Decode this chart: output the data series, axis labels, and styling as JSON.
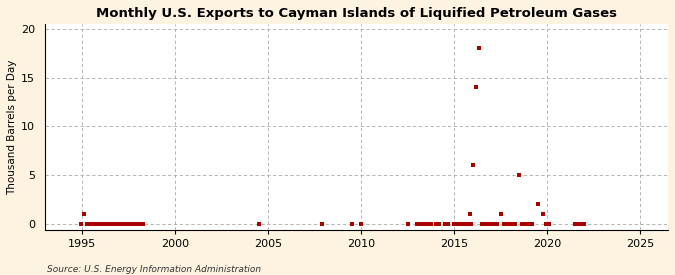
{
  "title": "Monthly U.S. Exports to Cayman Islands of Liquified Petroleum Gases",
  "ylabel": "Thousand Barrels per Day",
  "source": "Source: U.S. Energy Information Administration",
  "outer_bg": "#fdf3e0",
  "plot_bg": "#ffffff",
  "marker_color": "#aa0000",
  "xlim": [
    1993.0,
    2026.5
  ],
  "ylim": [
    -0.6,
    20.5
  ],
  "yticks": [
    0,
    5,
    10,
    15,
    20
  ],
  "xticks": [
    1995,
    2000,
    2005,
    2010,
    2015,
    2020,
    2025
  ],
  "data_points": [
    [
      1994.92,
      0.0
    ],
    [
      1995.08,
      1.0
    ],
    [
      1995.25,
      0.0
    ],
    [
      1995.33,
      0.0
    ],
    [
      1995.42,
      0.0
    ],
    [
      1995.5,
      0.0
    ],
    [
      1995.58,
      0.0
    ],
    [
      1995.67,
      0.0
    ],
    [
      1995.75,
      0.0
    ],
    [
      1995.83,
      0.0
    ],
    [
      1995.92,
      0.0
    ],
    [
      1996.0,
      0.0
    ],
    [
      1996.08,
      0.0
    ],
    [
      1996.17,
      0.0
    ],
    [
      1996.25,
      0.0
    ],
    [
      1996.33,
      0.0
    ],
    [
      1996.42,
      0.0
    ],
    [
      1996.5,
      0.0
    ],
    [
      1996.58,
      0.0
    ],
    [
      1996.67,
      0.0
    ],
    [
      1996.75,
      0.0
    ],
    [
      1996.83,
      0.0
    ],
    [
      1996.92,
      0.0
    ],
    [
      1997.0,
      0.0
    ],
    [
      1997.08,
      0.0
    ],
    [
      1997.17,
      0.0
    ],
    [
      1997.25,
      0.0
    ],
    [
      1997.33,
      0.0
    ],
    [
      1997.42,
      0.0
    ],
    [
      1997.5,
      0.0
    ],
    [
      1997.58,
      0.0
    ],
    [
      1997.67,
      0.0
    ],
    [
      1997.75,
      0.0
    ],
    [
      1997.83,
      0.0
    ],
    [
      1997.92,
      0.0
    ],
    [
      1998.0,
      0.0
    ],
    [
      1998.08,
      0.0
    ],
    [
      1998.17,
      0.0
    ],
    [
      1998.25,
      0.0
    ],
    [
      2004.5,
      0.0
    ],
    [
      2007.92,
      0.0
    ],
    [
      2009.5,
      0.0
    ],
    [
      2010.0,
      0.0
    ],
    [
      2012.5,
      0.0
    ],
    [
      2013.0,
      0.0
    ],
    [
      2013.17,
      0.0
    ],
    [
      2013.33,
      0.0
    ],
    [
      2013.5,
      0.0
    ],
    [
      2013.67,
      0.0
    ],
    [
      2013.75,
      0.0
    ],
    [
      2014.0,
      0.0
    ],
    [
      2014.17,
      0.0
    ],
    [
      2014.5,
      0.0
    ],
    [
      2014.67,
      0.0
    ],
    [
      2015.0,
      0.0
    ],
    [
      2015.08,
      0.0
    ],
    [
      2015.17,
      0.0
    ],
    [
      2015.25,
      0.0
    ],
    [
      2015.33,
      0.0
    ],
    [
      2015.42,
      0.0
    ],
    [
      2015.5,
      0.0
    ],
    [
      2015.67,
      0.0
    ],
    [
      2015.75,
      0.0
    ],
    [
      2015.83,
      1.0
    ],
    [
      2015.92,
      0.0
    ],
    [
      2016.0,
      6.0
    ],
    [
      2016.17,
      14.0
    ],
    [
      2016.33,
      18.0
    ],
    [
      2016.5,
      0.0
    ],
    [
      2016.58,
      0.0
    ],
    [
      2016.67,
      0.0
    ],
    [
      2016.75,
      0.0
    ],
    [
      2016.83,
      0.0
    ],
    [
      2016.92,
      0.0
    ],
    [
      2017.0,
      0.0
    ],
    [
      2017.08,
      0.0
    ],
    [
      2017.17,
      0.0
    ],
    [
      2017.25,
      0.0
    ],
    [
      2017.33,
      0.0
    ],
    [
      2017.5,
      1.0
    ],
    [
      2017.67,
      0.0
    ],
    [
      2017.75,
      0.0
    ],
    [
      2017.83,
      0.0
    ],
    [
      2017.92,
      0.0
    ],
    [
      2018.0,
      0.0
    ],
    [
      2018.08,
      0.0
    ],
    [
      2018.17,
      0.0
    ],
    [
      2018.25,
      0.0
    ],
    [
      2018.5,
      5.0
    ],
    [
      2018.67,
      0.0
    ],
    [
      2018.75,
      0.0
    ],
    [
      2018.83,
      0.0
    ],
    [
      2019.0,
      0.0
    ],
    [
      2019.08,
      0.0
    ],
    [
      2019.17,
      0.0
    ],
    [
      2019.5,
      2.0
    ],
    [
      2019.75,
      1.0
    ],
    [
      2019.92,
      0.0
    ],
    [
      2020.0,
      0.0
    ],
    [
      2020.08,
      0.0
    ],
    [
      2021.5,
      0.0
    ],
    [
      2021.67,
      0.0
    ],
    [
      2021.83,
      0.0
    ],
    [
      2022.0,
      0.0
    ]
  ]
}
